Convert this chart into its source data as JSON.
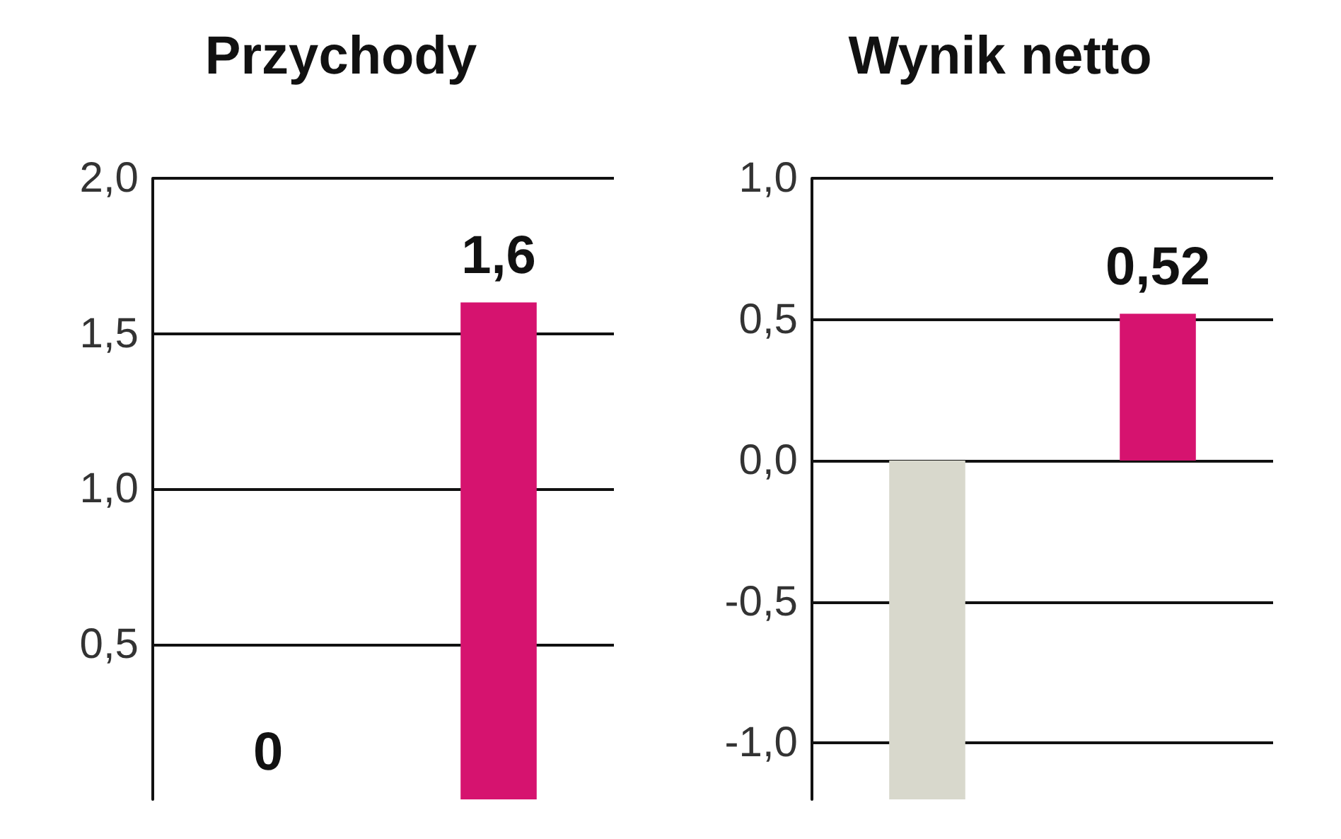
{
  "chart_data": [
    {
      "type": "bar",
      "title": "Przychody",
      "categories": [
        null,
        null
      ],
      "values": [
        0,
        1.6
      ],
      "colors": [
        "#d8d8cc",
        "#d6136f"
      ],
      "value_labels": [
        "0",
        "1,6"
      ],
      "ylim": [
        0,
        2.0
      ],
      "yticks": [
        {
          "value": 0.5,
          "label": "0,5"
        },
        {
          "value": 1.0,
          "label": "1,0"
        },
        {
          "value": 1.5,
          "label": "1,5"
        },
        {
          "value": 2.0,
          "label": "2,0"
        }
      ],
      "grid": "y",
      "tick_labels": "y"
    },
    {
      "type": "bar",
      "title": "Wynik netto",
      "categories": [
        null,
        null
      ],
      "values": [
        -1.2,
        0.52
      ],
      "colors": [
        "#d8d8cc",
        "#d6136f"
      ],
      "value_labels": [
        null,
        "0,52"
      ],
      "ylim": [
        -1.2,
        1.0
      ],
      "yticks": [
        {
          "value": -1.0,
          "label": "-1,0"
        },
        {
          "value": -0.5,
          "label": "-0,5"
        },
        {
          "value": 0.0,
          "label": "0,0"
        },
        {
          "value": 0.5,
          "label": "0,5"
        },
        {
          "value": 1.0,
          "label": "1,0"
        }
      ],
      "grid": "y",
      "tick_labels": "y"
    }
  ]
}
